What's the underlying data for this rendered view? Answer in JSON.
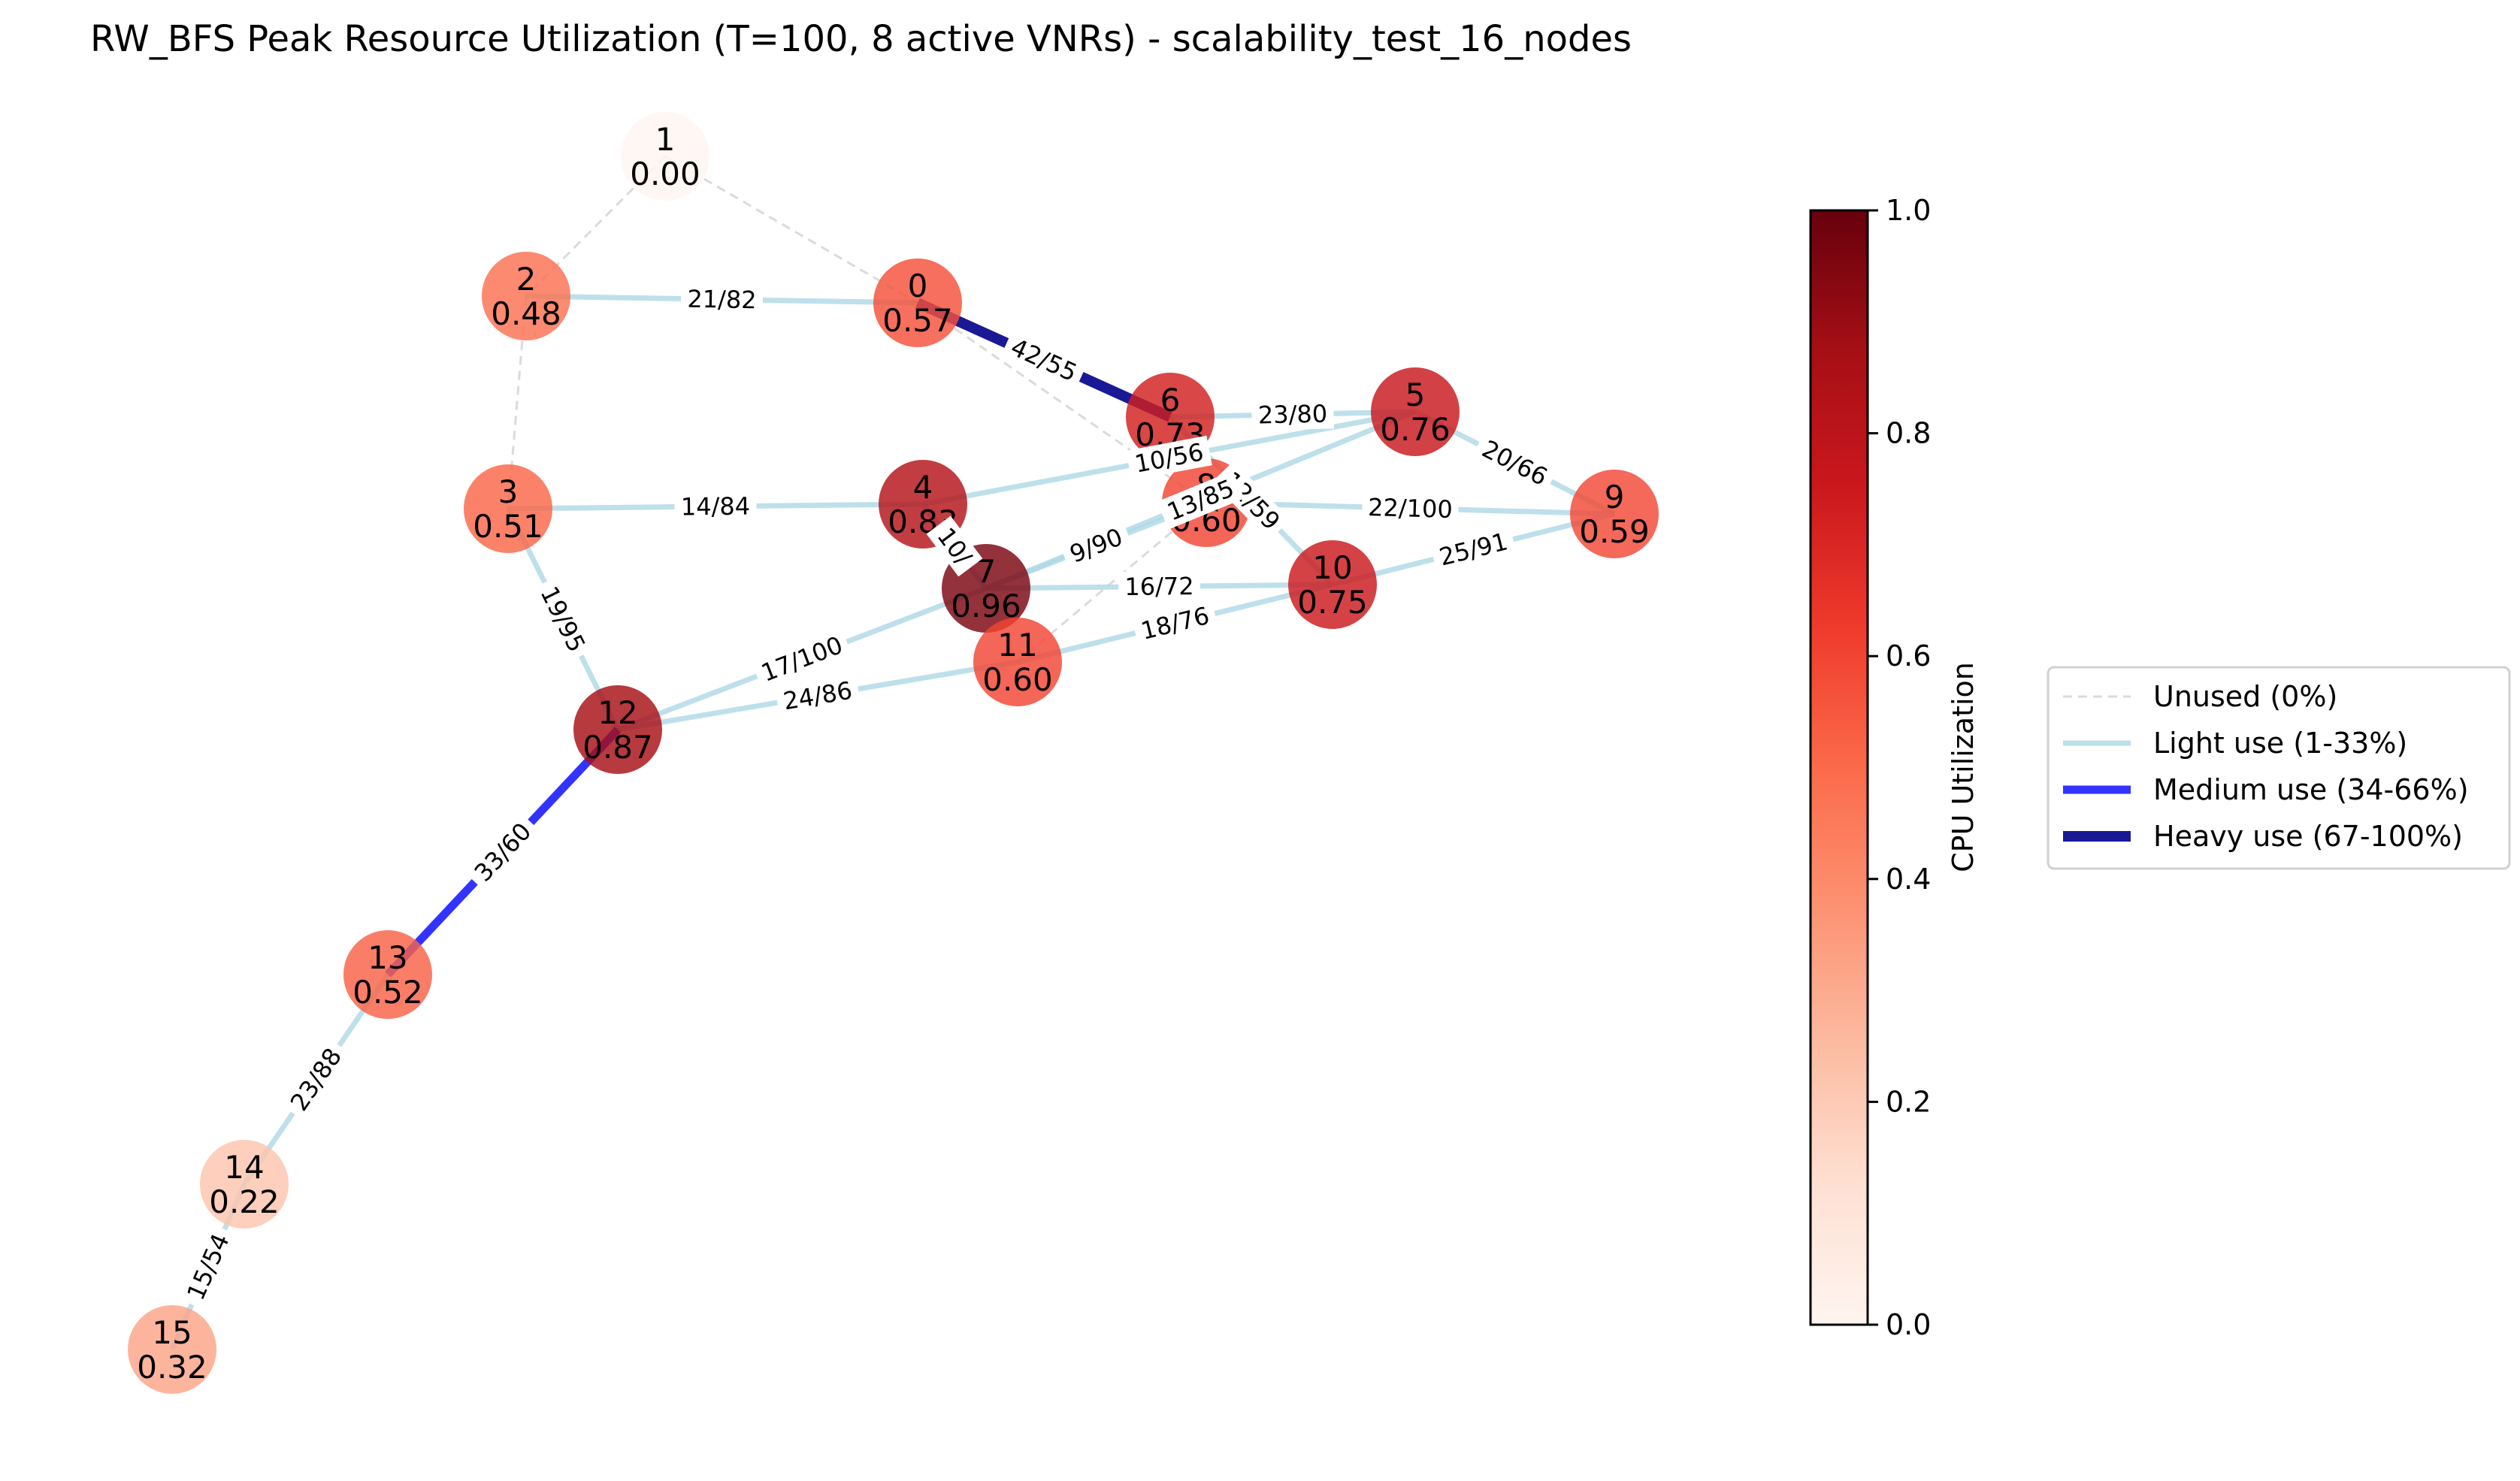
{
  "title": "RW_BFS Peak Resource Utilization (T=100, 8 active VNRs) - scalability_test_16_nodes",
  "colors": {
    "unused": "#cccccc",
    "light": "#add8e6",
    "medium": "#0000ff",
    "heavy": "#00008b",
    "colormap": [
      "#fff5f0",
      "#fee0d2",
      "#fcbba1",
      "#fc9272",
      "#fb6a4a",
      "#ef3b2c",
      "#cb181d",
      "#a50f15",
      "#67000d"
    ]
  },
  "colorbar": {
    "label": "CPU Utilization",
    "ticks": [
      "0.0",
      "0.2",
      "0.4",
      "0.6",
      "0.8",
      "1.0"
    ]
  },
  "legend": {
    "items": [
      {
        "label": "Unused (0%)",
        "style": "unused"
      },
      {
        "label": "Light use (1-33%)",
        "style": "light"
      },
      {
        "label": "Medium use (34-66%)",
        "style": "medium"
      },
      {
        "label": "Heavy use (67-100%)",
        "style": "heavy"
      }
    ]
  },
  "graph": {
    "nodes": [
      {
        "id": "0",
        "util": 0.57,
        "label": "0.57"
      },
      {
        "id": "1",
        "util": 0.0,
        "label": "0.00"
      },
      {
        "id": "2",
        "util": 0.48,
        "label": "0.48"
      },
      {
        "id": "3",
        "util": 0.51,
        "label": "0.51"
      },
      {
        "id": "4",
        "util": 0.83,
        "label": "0.83"
      },
      {
        "id": "5",
        "util": 0.76,
        "label": "0.76"
      },
      {
        "id": "6",
        "util": 0.73,
        "label": "0.73"
      },
      {
        "id": "7",
        "util": 0.96,
        "label": "0.96"
      },
      {
        "id": "8",
        "util": 0.6,
        "label": "0.60"
      },
      {
        "id": "9",
        "util": 0.59,
        "label": "0.59"
      },
      {
        "id": "10",
        "util": 0.75,
        "label": "0.75"
      },
      {
        "id": "11",
        "util": 0.6,
        "label": "0.60"
      },
      {
        "id": "12",
        "util": 0.87,
        "label": "0.87"
      },
      {
        "id": "13",
        "util": 0.52,
        "label": "0.52"
      },
      {
        "id": "14",
        "util": 0.22,
        "label": "0.22"
      },
      {
        "id": "15",
        "util": 0.32,
        "label": "0.32"
      }
    ],
    "edges": [
      {
        "source": "1",
        "target": "0",
        "usage": "unused",
        "label": ""
      },
      {
        "source": "1",
        "target": "2",
        "usage": "unused",
        "label": ""
      },
      {
        "source": "2",
        "target": "3",
        "usage": "unused",
        "label": ""
      },
      {
        "source": "0",
        "target": "8",
        "usage": "unused",
        "label": ""
      },
      {
        "source": "8",
        "target": "11",
        "usage": "unused",
        "label": ""
      },
      {
        "source": "2",
        "target": "0",
        "usage": "light",
        "label": "21/82"
      },
      {
        "source": "0",
        "target": "6",
        "usage": "heavy",
        "label": "42/55"
      },
      {
        "source": "6",
        "target": "5",
        "usage": "light",
        "label": "23/80"
      },
      {
        "source": "5",
        "target": "9",
        "usage": "light",
        "label": "20/66"
      },
      {
        "source": "3",
        "target": "4",
        "usage": "light",
        "label": "14/84"
      },
      {
        "source": "4",
        "target": "5",
        "usage": "light",
        "label": "10/56"
      },
      {
        "source": "8",
        "target": "9",
        "usage": "light",
        "label": "22/100"
      },
      {
        "source": "6",
        "target": "10",
        "usage": "light",
        "label": "12/59"
      },
      {
        "source": "7",
        "target": "5",
        "usage": "light",
        "label": "13/85"
      },
      {
        "source": "7",
        "target": "8",
        "usage": "light",
        "label": "9/90"
      },
      {
        "source": "4",
        "target": "7",
        "usage": "light",
        "label": "10/"
      },
      {
        "source": "7",
        "target": "10",
        "usage": "light",
        "label": "16/72"
      },
      {
        "source": "10",
        "target": "9",
        "usage": "light",
        "label": "25/91"
      },
      {
        "source": "11",
        "target": "10",
        "usage": "light",
        "label": "18/76"
      },
      {
        "source": "12",
        "target": "7",
        "usage": "light",
        "label": "17/100"
      },
      {
        "source": "12",
        "target": "11",
        "usage": "light",
        "label": "24/86"
      },
      {
        "source": "3",
        "target": "12",
        "usage": "light",
        "label": "19/95"
      },
      {
        "source": "12",
        "target": "13",
        "usage": "medium",
        "label": "33/60"
      },
      {
        "source": "13",
        "target": "14",
        "usage": "light",
        "label": "23/88"
      },
      {
        "source": "14",
        "target": "15",
        "usage": "light",
        "label": "15/54"
      }
    ]
  }
}
